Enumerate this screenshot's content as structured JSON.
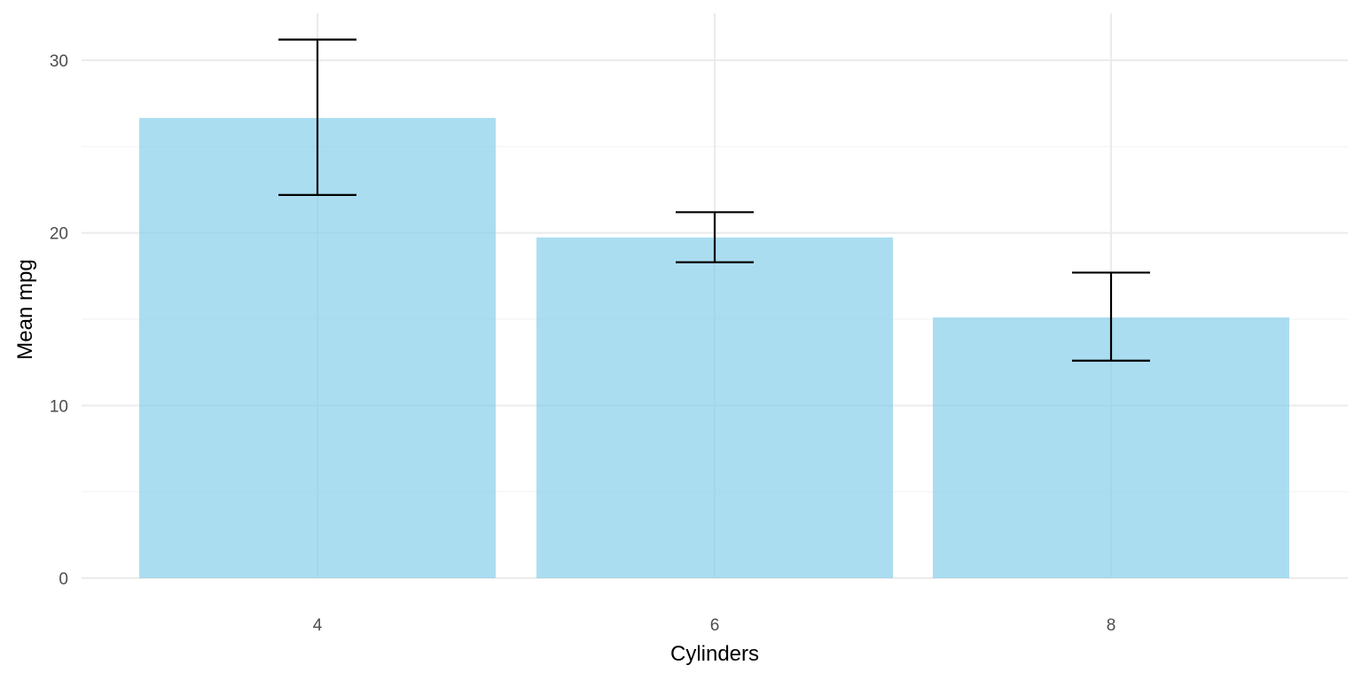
{
  "chart_data": {
    "type": "bar",
    "xlabel": "Cylinders",
    "ylabel": "Mean mpg",
    "categories": [
      "4",
      "6",
      "8"
    ],
    "values": [
      26.66,
      19.74,
      15.1
    ],
    "error_bars": [
      {
        "low": 22.2,
        "high": 31.2
      },
      {
        "low": 18.3,
        "high": 21.2
      },
      {
        "low": 12.6,
        "high": 17.7
      }
    ],
    "ylim": [
      0,
      33
    ],
    "yticks": [
      0,
      10,
      20,
      30
    ],
    "ytick_labels": [
      "0",
      "10",
      "20",
      "30"
    ],
    "grid": true,
    "legend": "none",
    "colors": {
      "bar": "#87CEEB",
      "error_bar": "#000000",
      "grid_major": "#ebebeb",
      "grid_minor": "#f2f2f2"
    }
  }
}
